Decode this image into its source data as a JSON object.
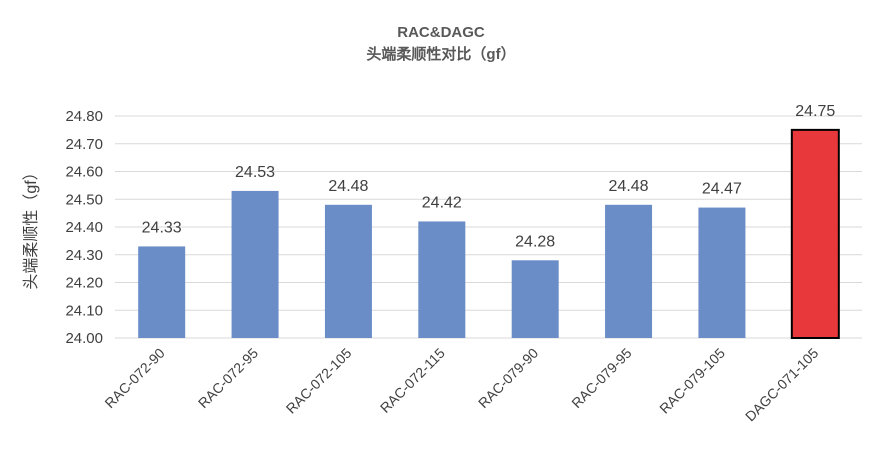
{
  "chart_data": {
    "type": "bar",
    "title": "RAC&DAGC",
    "subtitle": "头端柔顺性对比（gf）",
    "xlabel": "",
    "ylabel": "头端柔顺性（gf）",
    "ylim": [
      24.0,
      24.8
    ],
    "ytick_step": 0.1,
    "ytick_labels": [
      "24.00",
      "24.10",
      "24.20",
      "24.30",
      "24.40",
      "24.50",
      "24.60",
      "24.70",
      "24.80"
    ],
    "grid": "horizontal",
    "categories": [
      "RAC-072-90",
      "RAC-072-95",
      "RAC-072-105",
      "RAC-072-115",
      "RAC-079-90",
      "RAC-079-95",
      "RAC-079-105",
      "DAGC-071-105"
    ],
    "values": [
      24.33,
      24.53,
      24.48,
      24.42,
      24.28,
      24.48,
      24.47,
      24.75
    ],
    "data_labels": [
      "24.33",
      "24.53",
      "24.48",
      "24.42",
      "24.28",
      "24.48",
      "24.47",
      "24.75"
    ],
    "colors": {
      "default_bar": "#6a8cc7",
      "highlight_bar": "#e8383b",
      "highlight_border": "#000000",
      "grid": "#d9d9d9",
      "axis_text": "#404040",
      "title": "#595959"
    },
    "highlight_index": 7
  }
}
